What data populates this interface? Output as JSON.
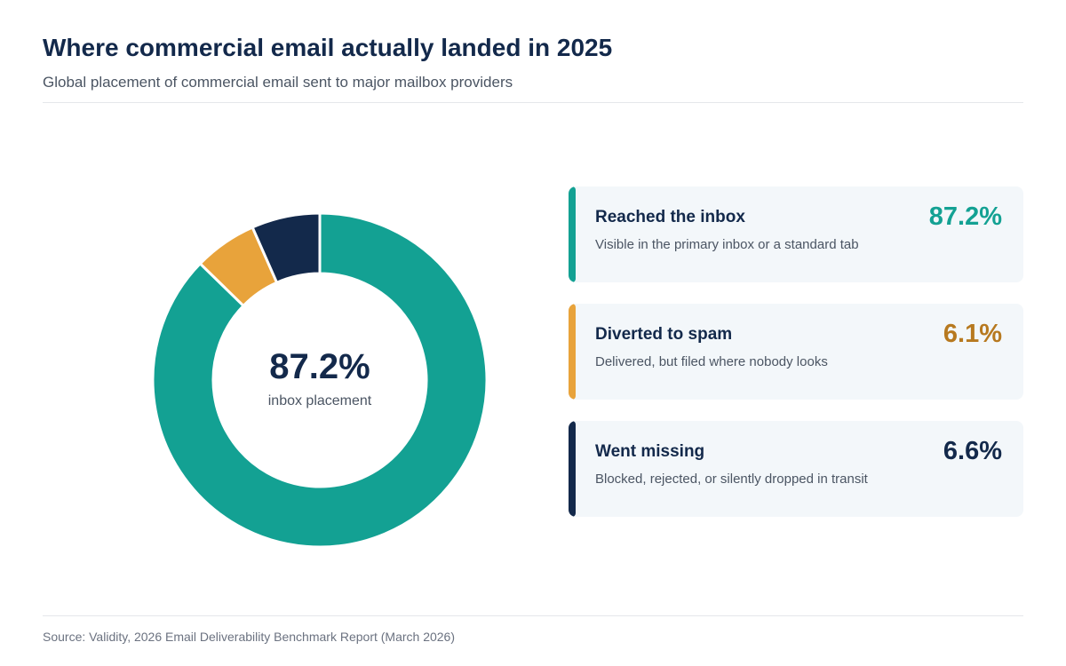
{
  "header": {
    "title": "Where commercial email actually landed in 2025",
    "subtitle": "Global placement of commercial email sent to major mailbox providers"
  },
  "chart_data": {
    "type": "pie",
    "variant": "donut",
    "title": "Where commercial email actually landed in 2025",
    "subtitle": "Global placement of commercial email sent to major mailbox providers",
    "unit": "%",
    "center_value": "87.2%",
    "center_label": "inbox placement",
    "slices": [
      {
        "label": "Reached the inbox",
        "value": 87.2,
        "display": "87.2%",
        "description": "Visible in the primary inbox or a standard tab",
        "color": "#13a193",
        "value_color": "#13a193"
      },
      {
        "label": "Diverted to spam",
        "value": 6.1,
        "display": "6.1%",
        "description": "Delivered, but filed where nobody looks",
        "color": "#e8a33b",
        "value_color": "#b7791f"
      },
      {
        "label": "Went missing",
        "value": 6.6,
        "display": "6.6%",
        "description": "Blocked, rejected, or silently dropped in transit",
        "color": "#13294b",
        "value_color": "#13294b"
      }
    ],
    "legend_position": "right"
  },
  "footer": {
    "source": "Source: Validity, 2026 Email Deliverability Benchmark Report (March 2026)"
  }
}
